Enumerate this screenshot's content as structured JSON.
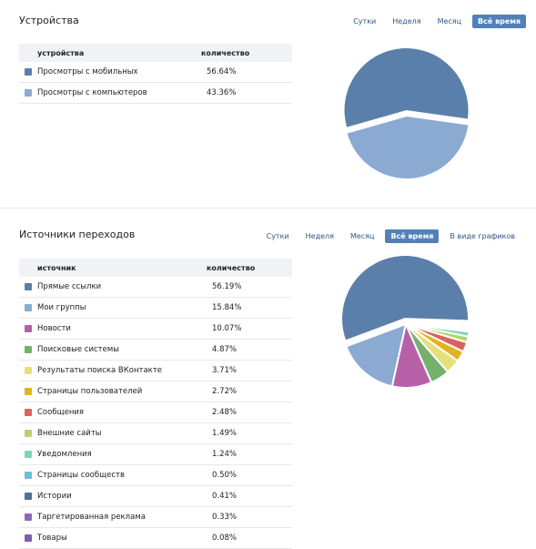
{
  "devices": {
    "title": "Устройства",
    "periods": [
      {
        "label": "Сутки",
        "active": false
      },
      {
        "label": "Неделя",
        "active": false
      },
      {
        "label": "Месяц",
        "active": false
      },
      {
        "label": "Всё время",
        "active": true
      }
    ],
    "table": {
      "headers": [
        "устройства",
        "количество"
      ],
      "rows": [
        {
          "label": "Просмотры с мобильных",
          "value": "56.64%",
          "color": "#5a7fab"
        },
        {
          "label": "Просмотры с компьютеров",
          "value": "43.36%",
          "color": "#8aaad2"
        }
      ]
    }
  },
  "sources": {
    "title": "Источники переходов",
    "periods": [
      {
        "label": "Сутки",
        "active": false
      },
      {
        "label": "Неделя",
        "active": false
      },
      {
        "label": "Месяц",
        "active": false
      },
      {
        "label": "Всё время",
        "active": true
      },
      {
        "label": "В виде графиков",
        "active": false
      }
    ],
    "table": {
      "headers": [
        "источник",
        "количество"
      ],
      "rows": [
        {
          "label": "Прямые ссылки",
          "value": "56.19%",
          "color": "#5a7fab"
        },
        {
          "label": "Мои группы",
          "value": "15.84%",
          "color": "#8aaad2"
        },
        {
          "label": "Новости",
          "value": "10.07%",
          "color": "#b760a8"
        },
        {
          "label": "Поисковые системы",
          "value": "4.87%",
          "color": "#75b06d"
        },
        {
          "label": "Результаты поиска ВКонтакте",
          "value": "3.71%",
          "color": "#e4e17b"
        },
        {
          "label": "Страницы пользователей",
          "value": "2.72%",
          "color": "#e1b421"
        },
        {
          "label": "Сообщения",
          "value": "2.48%",
          "color": "#dc6161"
        },
        {
          "label": "Внешние сайты",
          "value": "1.49%",
          "color": "#b4d46b"
        },
        {
          "label": "Уведомления",
          "value": "1.24%",
          "color": "#7fd4b5"
        },
        {
          "label": "Страницы сообществ",
          "value": "0.50%",
          "color": "#6cbfd6"
        },
        {
          "label": "Истории",
          "value": "0.41%",
          "color": "#4d6f98"
        },
        {
          "label": "Таргетированная реклама",
          "value": "0.33%",
          "color": "#8a6ab8"
        },
        {
          "label": "Товары",
          "value": "0.08%",
          "color": "#7b5fb0"
        }
      ]
    }
  },
  "chart_data": [
    {
      "type": "pie",
      "labels": [
        "Просмотры с мобильных",
        "Просмотры с компьютеров"
      ],
      "values": [
        56.64,
        43.36
      ],
      "colors": [
        "#5a7fab",
        "#8aaad2"
      ]
    },
    {
      "type": "pie",
      "labels": [
        "Прямые ссылки",
        "Мои группы",
        "Новости",
        "Поисковые системы",
        "Результаты поиска ВКонтакте",
        "Страницы пользователей",
        "Сообщения",
        "Внешние сайты",
        "Уведомления",
        "Страницы сообществ",
        "Истории",
        "Таргетированная реклама",
        "Товары"
      ],
      "values": [
        56.19,
        15.84,
        10.07,
        4.87,
        3.71,
        2.72,
        2.48,
        1.49,
        1.24,
        0.5,
        0.41,
        0.33,
        0.08
      ],
      "colors": [
        "#5a7fab",
        "#8aaad2",
        "#b760a8",
        "#75b06d",
        "#e4e17b",
        "#e1b421",
        "#dc6161",
        "#b4d46b",
        "#7fd4b5",
        "#6cbfd6",
        "#4d6f98",
        "#8a6ab8",
        "#7b5fb0"
      ]
    }
  ]
}
